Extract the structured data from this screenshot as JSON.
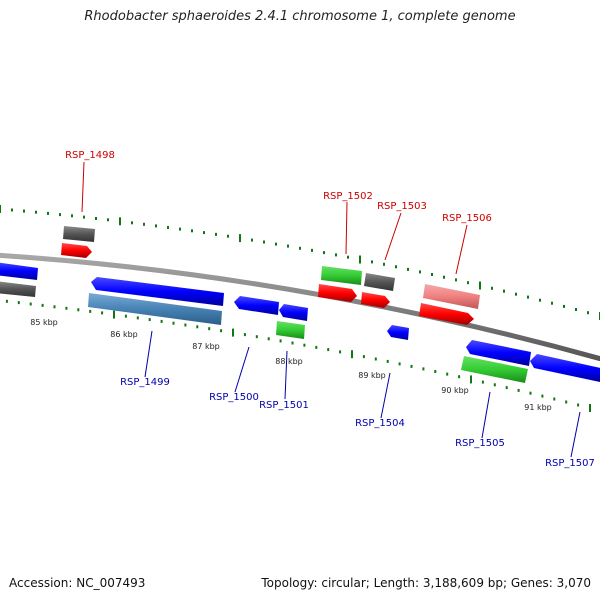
{
  "title": "Rhodobacter sphaeroides 2.4.1 chromosome 1, complete genome",
  "footer": {
    "accession": "Accession: NC_007493",
    "summary": "Topology: circular; Length: 3,188,609 bp; Genes: 3,070"
  },
  "colors": {
    "backbone": "#7f7f7f",
    "forward_cds": "#ff0000",
    "reverse_cds": "#0000ff",
    "rna": "#33cc33",
    "pseudogene_gray": "#555555",
    "highlight_blue": "#4682b4",
    "highlight_pink": "#f08080",
    "tick_green": "#117711",
    "label_red": "#cc0000",
    "label_blue": "#0000aa"
  },
  "kbp_labels": [
    "85 kbp",
    "86 kbp",
    "87 kbp",
    "88 kbp",
    "89 kbp",
    "90 kbp",
    "91 kbp"
  ],
  "gene_labels": [
    {
      "text": "RSP_1498",
      "strand": "forward"
    },
    {
      "text": "RSP_1502",
      "strand": "forward"
    },
    {
      "text": "RSP_1503",
      "strand": "forward"
    },
    {
      "text": "RSP_1506",
      "strand": "forward"
    },
    {
      "text": "RSP_1499",
      "strand": "reverse"
    },
    {
      "text": "RSP_1500",
      "strand": "reverse"
    },
    {
      "text": "RSP_1501",
      "strand": "reverse"
    },
    {
      "text": "RSP_1504",
      "strand": "reverse"
    },
    {
      "text": "RSP_1505",
      "strand": "reverse"
    },
    {
      "text": "RSP_1507",
      "strand": "reverse"
    }
  ]
}
